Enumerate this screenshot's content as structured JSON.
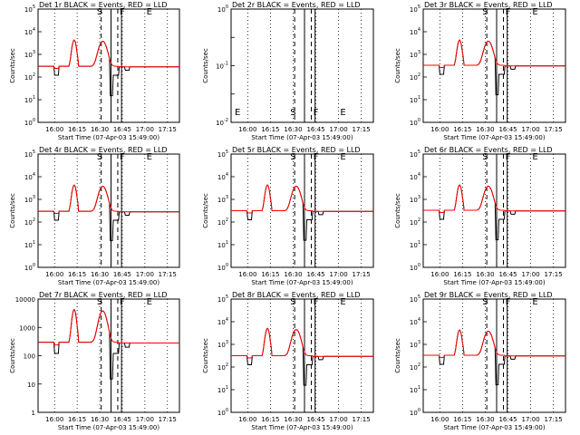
{
  "colors": {
    "events": "#000000",
    "lld": "#ff0000",
    "background": "#ffffff"
  },
  "x_tick_labels": [
    "16:00",
    "16:15",
    "16:30",
    "16:45",
    "17:00",
    "17:15"
  ],
  "x_label": "Start Time (07-Apr-03 15:49:00)",
  "y_label": "Counts/sec",
  "marker_labels": [
    "S",
    "F",
    "E"
  ],
  "chart_data": [
    {
      "type": "line",
      "panel": "1",
      "title": "Det 1r BLACK = Events, RED = LLD",
      "ylim": [
        1,
        100000
      ],
      "yscale": "log",
      "y_tick_labels": [
        "10^0",
        "10^1",
        "10^2",
        "10^3",
        "10^4",
        "10^5"
      ],
      "has_data": true,
      "data_prefix": "",
      "x_range": [
        "15:49",
        "17:23"
      ],
      "x_ticks": [
        "16:00",
        "16:15",
        "16:30",
        "16:45",
        "17:00",
        "17:15"
      ],
      "series": [
        {
          "name": "Events"
        },
        {
          "name": "LLD"
        }
      ]
    },
    {
      "type": "line",
      "panel": "2",
      "title": "Det 2r BLACK = Events, RED = LLD",
      "ylim": [
        0.01,
        1.0
      ],
      "yscale": "log",
      "y_tick_labels": [
        "10^-2",
        "",
        "10^-1",
        "",
        "10^0"
      ],
      "has_data": false,
      "data_prefix": "",
      "x_range": [
        "15:49",
        "17:23"
      ],
      "x_ticks": [
        "16:00",
        "16:15",
        "16:30",
        "16:45",
        "17:00",
        "17:15"
      ],
      "series": []
    },
    {
      "type": "line",
      "panel": "3",
      "title": "Det 3r BLACK = Events, RED = LLD",
      "ylim": [
        1,
        100000
      ],
      "yscale": "log",
      "y_tick_labels": [
        "10^0",
        "10^1",
        "10^2",
        "10^3",
        "10^4",
        "10^5"
      ],
      "has_data": true,
      "data_prefix": "",
      "x_range": [
        "15:49",
        "17:23"
      ],
      "x_ticks": [
        "16:00",
        "16:15",
        "16:30",
        "16:45",
        "17:00",
        "17:15"
      ],
      "series": [
        {
          "name": "Events"
        },
        {
          "name": "LLD"
        }
      ]
    },
    {
      "type": "line",
      "panel": "4",
      "title": "Det 4r BLACK = Events, RED = LLD",
      "ylim": [
        1,
        100000
      ],
      "yscale": "log",
      "y_tick_labels": [
        "10^0",
        "10^1",
        "10^2",
        "10^3",
        "10^4",
        "10^5"
      ],
      "has_data": true,
      "data_prefix": "",
      "x_range": [
        "15:49",
        "17:23"
      ],
      "x_ticks": [
        "16:00",
        "16:15",
        "16:30",
        "16:45",
        "17:00",
        "17:15"
      ],
      "series": [
        {
          "name": "Events"
        },
        {
          "name": "LLD"
        }
      ]
    },
    {
      "type": "line",
      "panel": "5",
      "title": "Det 5r BLACK = Events, RED = LLD",
      "ylim": [
        1,
        100000
      ],
      "yscale": "log",
      "y_tick_labels": [
        "10^0",
        "10^1",
        "10^2",
        "10^3",
        "10^4",
        "10^5"
      ],
      "has_data": true,
      "data_prefix": "",
      "x_range": [
        "15:49",
        "17:23"
      ],
      "x_ticks": [
        "16:00",
        "16:15",
        "16:30",
        "16:45",
        "17:00",
        "17:15"
      ],
      "series": [
        {
          "name": "Events"
        },
        {
          "name": "LLD"
        }
      ]
    },
    {
      "type": "line",
      "panel": "6",
      "title": "Det 6r BLACK = Events, RED = LLD",
      "ylim": [
        1,
        100000
      ],
      "yscale": "log",
      "y_tick_labels": [
        "10^0",
        "10^1",
        "10^2",
        "10^3",
        "10^4",
        "10^5"
      ],
      "has_data": true,
      "data_prefix": "",
      "x_range": [
        "15:49",
        "17:23"
      ],
      "x_ticks": [
        "16:00",
        "16:15",
        "16:30",
        "16:45",
        "17:00",
        "17:15"
      ],
      "series": [
        {
          "name": "Events"
        },
        {
          "name": "LLD"
        }
      ]
    },
    {
      "type": "line",
      "panel": "7",
      "title": "Det 7r BLACK = Events, RED = LLD",
      "ylim": [
        1,
        10000
      ],
      "yscale": "log",
      "y_tick_labels": [
        "1",
        "10",
        "100",
        "1000",
        "10000"
      ],
      "has_data": true,
      "data_prefix": "",
      "x_range": [
        "15:49",
        "17:23"
      ],
      "x_ticks": [
        "16:00",
        "16:15",
        "16:30",
        "16:45",
        "17:00",
        "17:15"
      ],
      "series": [
        {
          "name": "Events"
        },
        {
          "name": "LLD"
        }
      ]
    },
    {
      "type": "line",
      "panel": "8",
      "title": "Det 8r BLACK = Events, RED = LLD",
      "ylim": [
        1,
        100000
      ],
      "yscale": "log",
      "y_tick_labels": [
        "10^0",
        "10^1",
        "10^2",
        "10^3",
        "10^4",
        "10^5"
      ],
      "has_data": true,
      "data_prefix": "",
      "x_range": [
        "15:49",
        "17:23"
      ],
      "x_ticks": [
        "16:00",
        "16:15",
        "16:30",
        "16:45",
        "17:00",
        "17:15"
      ],
      "series": [
        {
          "name": "Events"
        },
        {
          "name": "LLD"
        }
      ]
    },
    {
      "type": "line",
      "panel": "9",
      "title": "Det 9r BLACK = Events, RED = LLD",
      "ylim": [
        1,
        100000
      ],
      "yscale": "log",
      "y_tick_labels": [
        "10^0",
        "10^1",
        "10^2",
        "10^3",
        "10^4",
        "10^5"
      ],
      "has_data": true,
      "data_prefix": "",
      "x_range": [
        "15:49",
        "17:23"
      ],
      "x_ticks": [
        "16:00",
        "16:15",
        "16:30",
        "16:45",
        "17:00",
        "17:15"
      ],
      "series": [
        {
          "name": "Events"
        },
        {
          "name": "LLD"
        }
      ]
    }
  ]
}
